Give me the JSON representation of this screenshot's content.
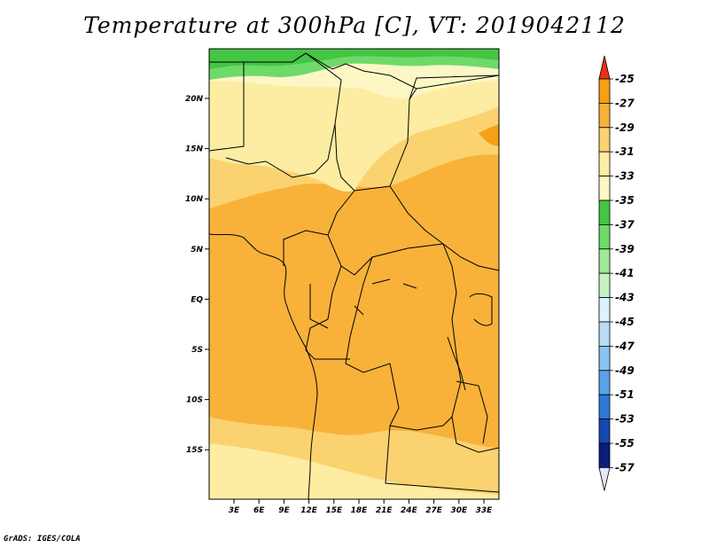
{
  "title": "Temperature at 300hPa [C], VT: 2019042112",
  "footer": "GrADS: IGES/COLA",
  "map": {
    "lon_ticks": [
      "3E",
      "6E",
      "9E",
      "12E",
      "15E",
      "18E",
      "21E",
      "24E",
      "27E",
      "30E",
      "33E"
    ],
    "lat_ticks": [
      "20N",
      "15N",
      "10N",
      "5N",
      "EQ",
      "5S",
      "10S",
      "15S"
    ]
  },
  "colorbar": {
    "levels": [
      "-25",
      "-27",
      "-29",
      "-31",
      "-33",
      "-35",
      "-37",
      "-39",
      "-41",
      "-43",
      "-45",
      "-47",
      "-49",
      "-51",
      "-53",
      "-55",
      "-57"
    ],
    "colors": [
      "#f05a14",
      "#f5a015",
      "#f8b23a",
      "#fbd270",
      "#fdeda3",
      "#fdf7c5",
      "#44c544",
      "#6fd96a",
      "#9fe895",
      "#c7f3c3",
      "#dcf2fd",
      "#b9dcf7",
      "#8ac4f0",
      "#5aa3e8",
      "#2f78d8",
      "#1548b0",
      "#0b1d7a",
      "#0b0d55"
    ],
    "top_arrow_color": "#e83214",
    "bottom_arrow_color": "#e6e6fa"
  }
}
